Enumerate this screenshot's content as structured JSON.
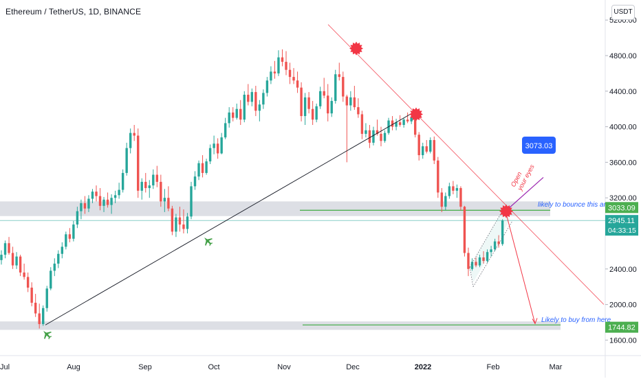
{
  "header": {
    "title": "Ethereum / TetherUS, 1D, BINANCE",
    "currency": "USDT"
  },
  "colors": {
    "up": "#26a69a",
    "down": "#ef5350",
    "zone": "#d1d4dc",
    "trendline": "#f23645",
    "annotation_blue": "#2962ff",
    "target_green": "#4caf50",
    "axis_text": "#131722"
  },
  "icons": [
    "starburst-icon",
    "airplane-icon"
  ],
  "chart_data": {
    "type": "candlestick",
    "y_axis_ticks": [
      "5200.00",
      "4800.00",
      "4400.00",
      "4000.00",
      "3600.00",
      "3200.00",
      "2400.00",
      "2000.00",
      "1600.00"
    ],
    "x_axis_ticks": [
      "Jul",
      "Aug",
      "Sep",
      "Oct",
      "Nov",
      "Dec",
      "2022",
      "Feb",
      "Mar"
    ],
    "price_labels": {
      "zone_level": "3033.09",
      "last_price": "2945.11",
      "countdown": "04:33:15",
      "buy_level": "1744.82"
    },
    "callout": "3073.03",
    "annotations": {
      "bounce": "likely to bounce this area",
      "buy": "Likely to buy from here",
      "eyes": [
        "Open",
        "your eyes"
      ]
    },
    "ohlc": [
      [
        2500,
        2610,
        2450,
        2560
      ],
      [
        2560,
        2720,
        2520,
        2690
      ],
      [
        2690,
        2760,
        2560,
        2580
      ],
      [
        2580,
        2650,
        2400,
        2440
      ],
      [
        2440,
        2590,
        2400,
        2540
      ],
      [
        2540,
        2560,
        2320,
        2360
      ],
      [
        2360,
        2460,
        2280,
        2310
      ],
      [
        2310,
        2360,
        2140,
        2190
      ],
      [
        2190,
        2250,
        1980,
        2020
      ],
      [
        2020,
        2120,
        1860,
        1900
      ],
      [
        1900,
        2010,
        1730,
        1780
      ],
      [
        1780,
        1990,
        1760,
        1960
      ],
      [
        1960,
        2210,
        1920,
        2180
      ],
      [
        2180,
        2420,
        2160,
        2380
      ],
      [
        2380,
        2520,
        2320,
        2460
      ],
      [
        2460,
        2610,
        2410,
        2570
      ],
      [
        2570,
        2700,
        2520,
        2650
      ],
      [
        2650,
        2820,
        2620,
        2790
      ],
      [
        2790,
        2860,
        2700,
        2740
      ],
      [
        2740,
        2940,
        2710,
        2900
      ],
      [
        2900,
        3100,
        2860,
        3050
      ],
      [
        3050,
        3180,
        2960,
        3140
      ],
      [
        3140,
        3220,
        3020,
        3080
      ],
      [
        3080,
        3230,
        3040,
        3190
      ],
      [
        3190,
        3300,
        3140,
        3270
      ],
      [
        3270,
        3340,
        3160,
        3220
      ],
      [
        3220,
        3310,
        3060,
        3110
      ],
      [
        3110,
        3210,
        3040,
        3180
      ],
      [
        3180,
        3260,
        3090,
        3120
      ],
      [
        3120,
        3240,
        3020,
        3200
      ],
      [
        3200,
        3280,
        3140,
        3230
      ],
      [
        3230,
        3370,
        3190,
        3290
      ],
      [
        3290,
        3520,
        3260,
        3480
      ],
      [
        3480,
        3820,
        3450,
        3760
      ],
      [
        3760,
        3980,
        3700,
        3930
      ],
      [
        3930,
        4020,
        3840,
        3900
      ],
      [
        3900,
        3980,
        3200,
        3280
      ],
      [
        3280,
        3420,
        3180,
        3380
      ],
      [
        3380,
        3480,
        3260,
        3310
      ],
      [
        3310,
        3400,
        3200,
        3340
      ],
      [
        3340,
        3520,
        3300,
        3460
      ],
      [
        3460,
        3560,
        3320,
        3380
      ],
      [
        3380,
        3460,
        3100,
        3160
      ],
      [
        3160,
        3300,
        3040,
        3200
      ],
      [
        3200,
        3330,
        3050,
        3080
      ],
      [
        3080,
        3110,
        2780,
        2820
      ],
      [
        2820,
        3020,
        2760,
        2980
      ],
      [
        2980,
        3100,
        2820,
        2900
      ],
      [
        2900,
        3070,
        2800,
        2850
      ],
      [
        2850,
        3030,
        2800,
        2990
      ],
      [
        2990,
        3380,
        2960,
        3330
      ],
      [
        3330,
        3500,
        3290,
        3440
      ],
      [
        3440,
        3620,
        3400,
        3590
      ],
      [
        3590,
        3680,
        3430,
        3480
      ],
      [
        3480,
        3640,
        3460,
        3610
      ],
      [
        3610,
        3800,
        3580,
        3760
      ],
      [
        3760,
        3900,
        3690,
        3810
      ],
      [
        3810,
        3870,
        3640,
        3700
      ],
      [
        3700,
        3930,
        3690,
        3880
      ],
      [
        3880,
        4100,
        3860,
        4040
      ],
      [
        4040,
        4220,
        3990,
        4160
      ],
      [
        4160,
        4220,
        4060,
        4100
      ],
      [
        4100,
        4260,
        4080,
        4200
      ],
      [
        4200,
        4300,
        4020,
        4080
      ],
      [
        4080,
        4400,
        4050,
        4360
      ],
      [
        4360,
        4480,
        4240,
        4280
      ],
      [
        4280,
        4430,
        4230,
        4390
      ],
      [
        4390,
        4460,
        4120,
        4180
      ],
      [
        4180,
        4300,
        4060,
        4250
      ],
      [
        4250,
        4420,
        4200,
        4380
      ],
      [
        4380,
        4560,
        4340,
        4520
      ],
      [
        4520,
        4680,
        4480,
        4620
      ],
      [
        4620,
        4740,
        4540,
        4600
      ],
      [
        4600,
        4860,
        4570,
        4780
      ],
      [
        4780,
        4870,
        4680,
        4730
      ],
      [
        4730,
        4850,
        4580,
        4640
      ],
      [
        4640,
        4720,
        4480,
        4560
      ],
      [
        4560,
        4660,
        4480,
        4520
      ],
      [
        4520,
        4620,
        4380,
        4440
      ],
      [
        4440,
        4500,
        4060,
        4120
      ],
      [
        4120,
        4380,
        4020,
        4330
      ],
      [
        4330,
        4390,
        4150,
        4200
      ],
      [
        4200,
        4290,
        4020,
        4080
      ],
      [
        4080,
        4260,
        4050,
        4230
      ],
      [
        4230,
        4450,
        4200,
        4400
      ],
      [
        4400,
        4550,
        4320,
        4350
      ],
      [
        4350,
        4480,
        4060,
        4150
      ],
      [
        4150,
        4330,
        4110,
        4290
      ],
      [
        4290,
        4640,
        4260,
        4590
      ],
      [
        4590,
        4720,
        4520,
        4560
      ],
      [
        4560,
        4620,
        4280,
        4340
      ],
      [
        4340,
        4360,
        3600,
        4240
      ],
      [
        4240,
        4400,
        4180,
        4330
      ],
      [
        4330,
        4460,
        4190,
        4220
      ],
      [
        4220,
        4320,
        4100,
        4140
      ],
      [
        4140,
        4180,
        3860,
        3920
      ],
      [
        3920,
        4040,
        3880,
        3960
      ],
      [
        3960,
        4020,
        3760,
        3820
      ],
      [
        3820,
        4000,
        3790,
        3960
      ],
      [
        3960,
        4080,
        3900,
        3920
      ],
      [
        3920,
        4000,
        3780,
        3840
      ],
      [
        3840,
        3960,
        3820,
        3930
      ],
      [
        3930,
        4100,
        3910,
        4070
      ],
      [
        4070,
        4120,
        3960,
        4000
      ],
      [
        4000,
        4090,
        3960,
        4050
      ],
      [
        4050,
        4130,
        4000,
        4020
      ],
      [
        4020,
        4100,
        3990,
        4080
      ],
      [
        4080,
        4160,
        4040,
        4060
      ],
      [
        4060,
        4140,
        4030,
        4110
      ],
      [
        4110,
        4150,
        3880,
        3910
      ],
      [
        3910,
        3940,
        3620,
        3680
      ],
      [
        3680,
        3820,
        3640,
        3780
      ],
      [
        3780,
        3850,
        3700,
        3720
      ],
      [
        3720,
        3880,
        3700,
        3850
      ],
      [
        3850,
        3890,
        3580,
        3620
      ],
      [
        3620,
        3660,
        3200,
        3260
      ],
      [
        3260,
        3310,
        3040,
        3100
      ],
      [
        3100,
        3260,
        3060,
        3220
      ],
      [
        3220,
        3370,
        3190,
        3330
      ],
      [
        3330,
        3390,
        3240,
        3280
      ],
      [
        3280,
        3350,
        3200,
        3310
      ],
      [
        3310,
        3330,
        3060,
        3100
      ],
      [
        3100,
        3110,
        2540,
        2580
      ],
      [
        2580,
        2640,
        2320,
        2400
      ],
      [
        2400,
        2520,
        2380,
        2480
      ],
      [
        2480,
        2530,
        2420,
        2440
      ],
      [
        2440,
        2560,
        2420,
        2530
      ],
      [
        2530,
        2600,
        2460,
        2490
      ],
      [
        2490,
        2620,
        2470,
        2590
      ],
      [
        2590,
        2660,
        2540,
        2620
      ],
      [
        2620,
        2740,
        2600,
        2710
      ],
      [
        2710,
        2780,
        2640,
        2680
      ],
      [
        2680,
        2960,
        2660,
        2945.11
      ]
    ]
  }
}
